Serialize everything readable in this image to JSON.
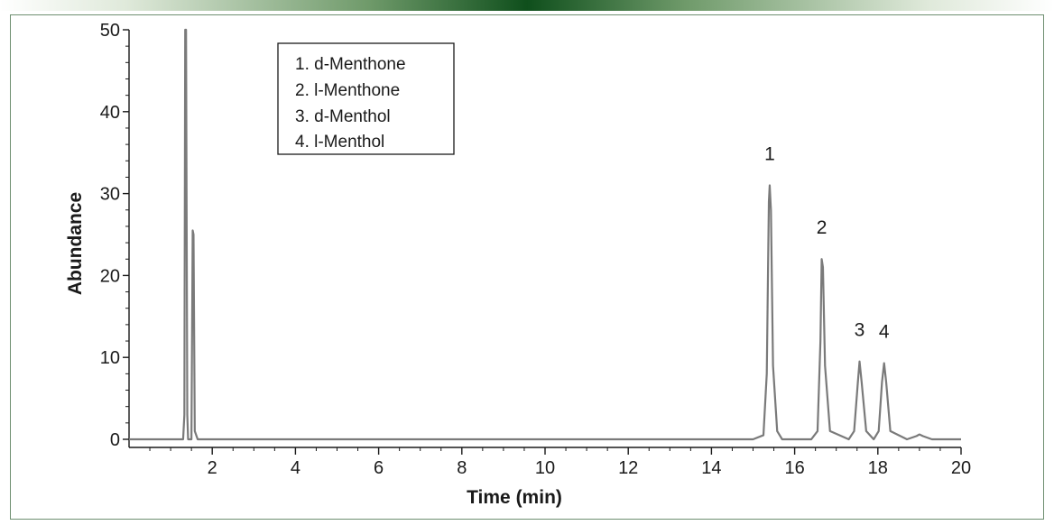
{
  "chart_data": {
    "type": "line",
    "title": "",
    "xlabel": "Time (min)",
    "ylabel": "Abundance",
    "xlim": [
      0,
      20
    ],
    "ylim": [
      0,
      50
    ],
    "x_ticks": [
      2,
      4,
      6,
      8,
      10,
      12,
      14,
      16,
      18,
      20
    ],
    "y_ticks": [
      0,
      10,
      20,
      30,
      40,
      50
    ],
    "grid": false,
    "line_color": "#7a7a7a",
    "series": [
      {
        "x": [
          0,
          1.3,
          1.33,
          1.35,
          1.37,
          1.4,
          1.42,
          1.5,
          1.53,
          1.55,
          1.58,
          1.65,
          2.0,
          15.0,
          15.25,
          15.33,
          15.38,
          15.4,
          15.43,
          15.48,
          15.58,
          15.7,
          16.4,
          16.55,
          16.62,
          16.65,
          16.68,
          16.73,
          16.85,
          17.3,
          17.43,
          17.52,
          17.56,
          17.61,
          17.72,
          17.9,
          18.02,
          18.1,
          18.15,
          18.2,
          18.3,
          18.7,
          18.93,
          19.0,
          19.08,
          19.3,
          20.0
        ],
        "y": [
          0,
          0,
          3,
          50,
          50,
          3,
          0,
          0,
          25.5,
          25,
          1,
          0,
          0,
          0,
          0.5,
          8,
          29,
          31,
          28,
          9,
          1,
          0,
          0,
          1,
          12,
          22,
          21,
          9,
          1,
          0,
          1,
          7,
          9.5,
          7,
          1,
          0,
          1,
          7,
          9.3,
          7,
          1,
          0,
          0.4,
          0.6,
          0.4,
          0,
          0
        ]
      }
    ],
    "annotations": [
      {
        "text": "1",
        "x": 15.4,
        "y": 31
      },
      {
        "text": "2",
        "x": 16.65,
        "y": 22
      },
      {
        "text": "3",
        "x": 17.56,
        "y": 9.5
      },
      {
        "text": "4",
        "x": 18.15,
        "y": 9.3
      }
    ],
    "legend": {
      "placement": "top-left",
      "entries": [
        "1. d-Menthone",
        "2. l-Menthone",
        "3. d-Menthol",
        "4. l-Menthol"
      ]
    }
  }
}
